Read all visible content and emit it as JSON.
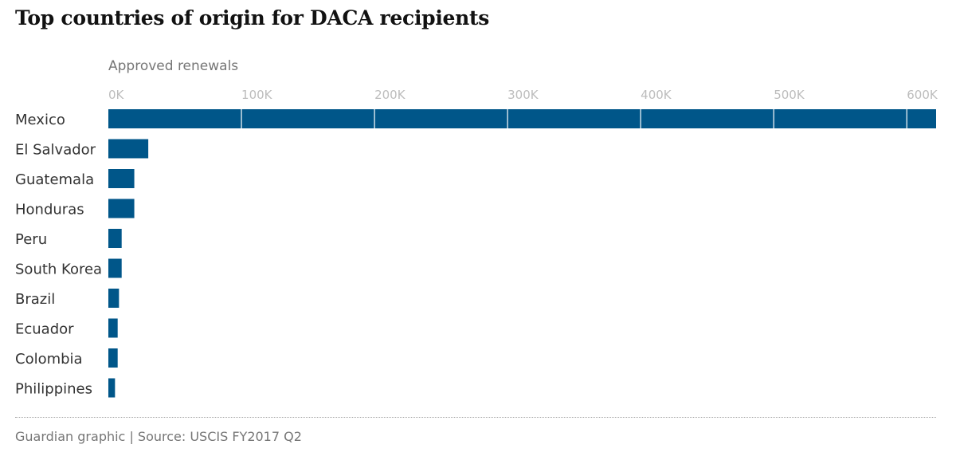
{
  "chart_data": {
    "type": "bar",
    "orientation": "horizontal",
    "title": "Top countries of origin for DACA recipients",
    "xlabel": "Approved renewals",
    "categories": [
      "Mexico",
      "El Salvador",
      "Guatemala",
      "Honduras",
      "Peru",
      "South Korea",
      "Brazil",
      "Ecuador",
      "Colombia",
      "Philippines"
    ],
    "values": [
      622000,
      30000,
      19500,
      19500,
      10000,
      10000,
      8000,
      7000,
      7000,
      5000
    ],
    "xlim": [
      0,
      622000
    ],
    "xticks": [
      0,
      100000,
      200000,
      300000,
      400000,
      500000,
      600000
    ],
    "xtick_labels": [
      "0K",
      "100K",
      "200K",
      "300K",
      "400K",
      "500K",
      "600K"
    ],
    "grid": true,
    "bar_color": "#005689"
  },
  "footer": {
    "source": "Guardian graphic | Source: USCIS FY2017 Q2"
  }
}
